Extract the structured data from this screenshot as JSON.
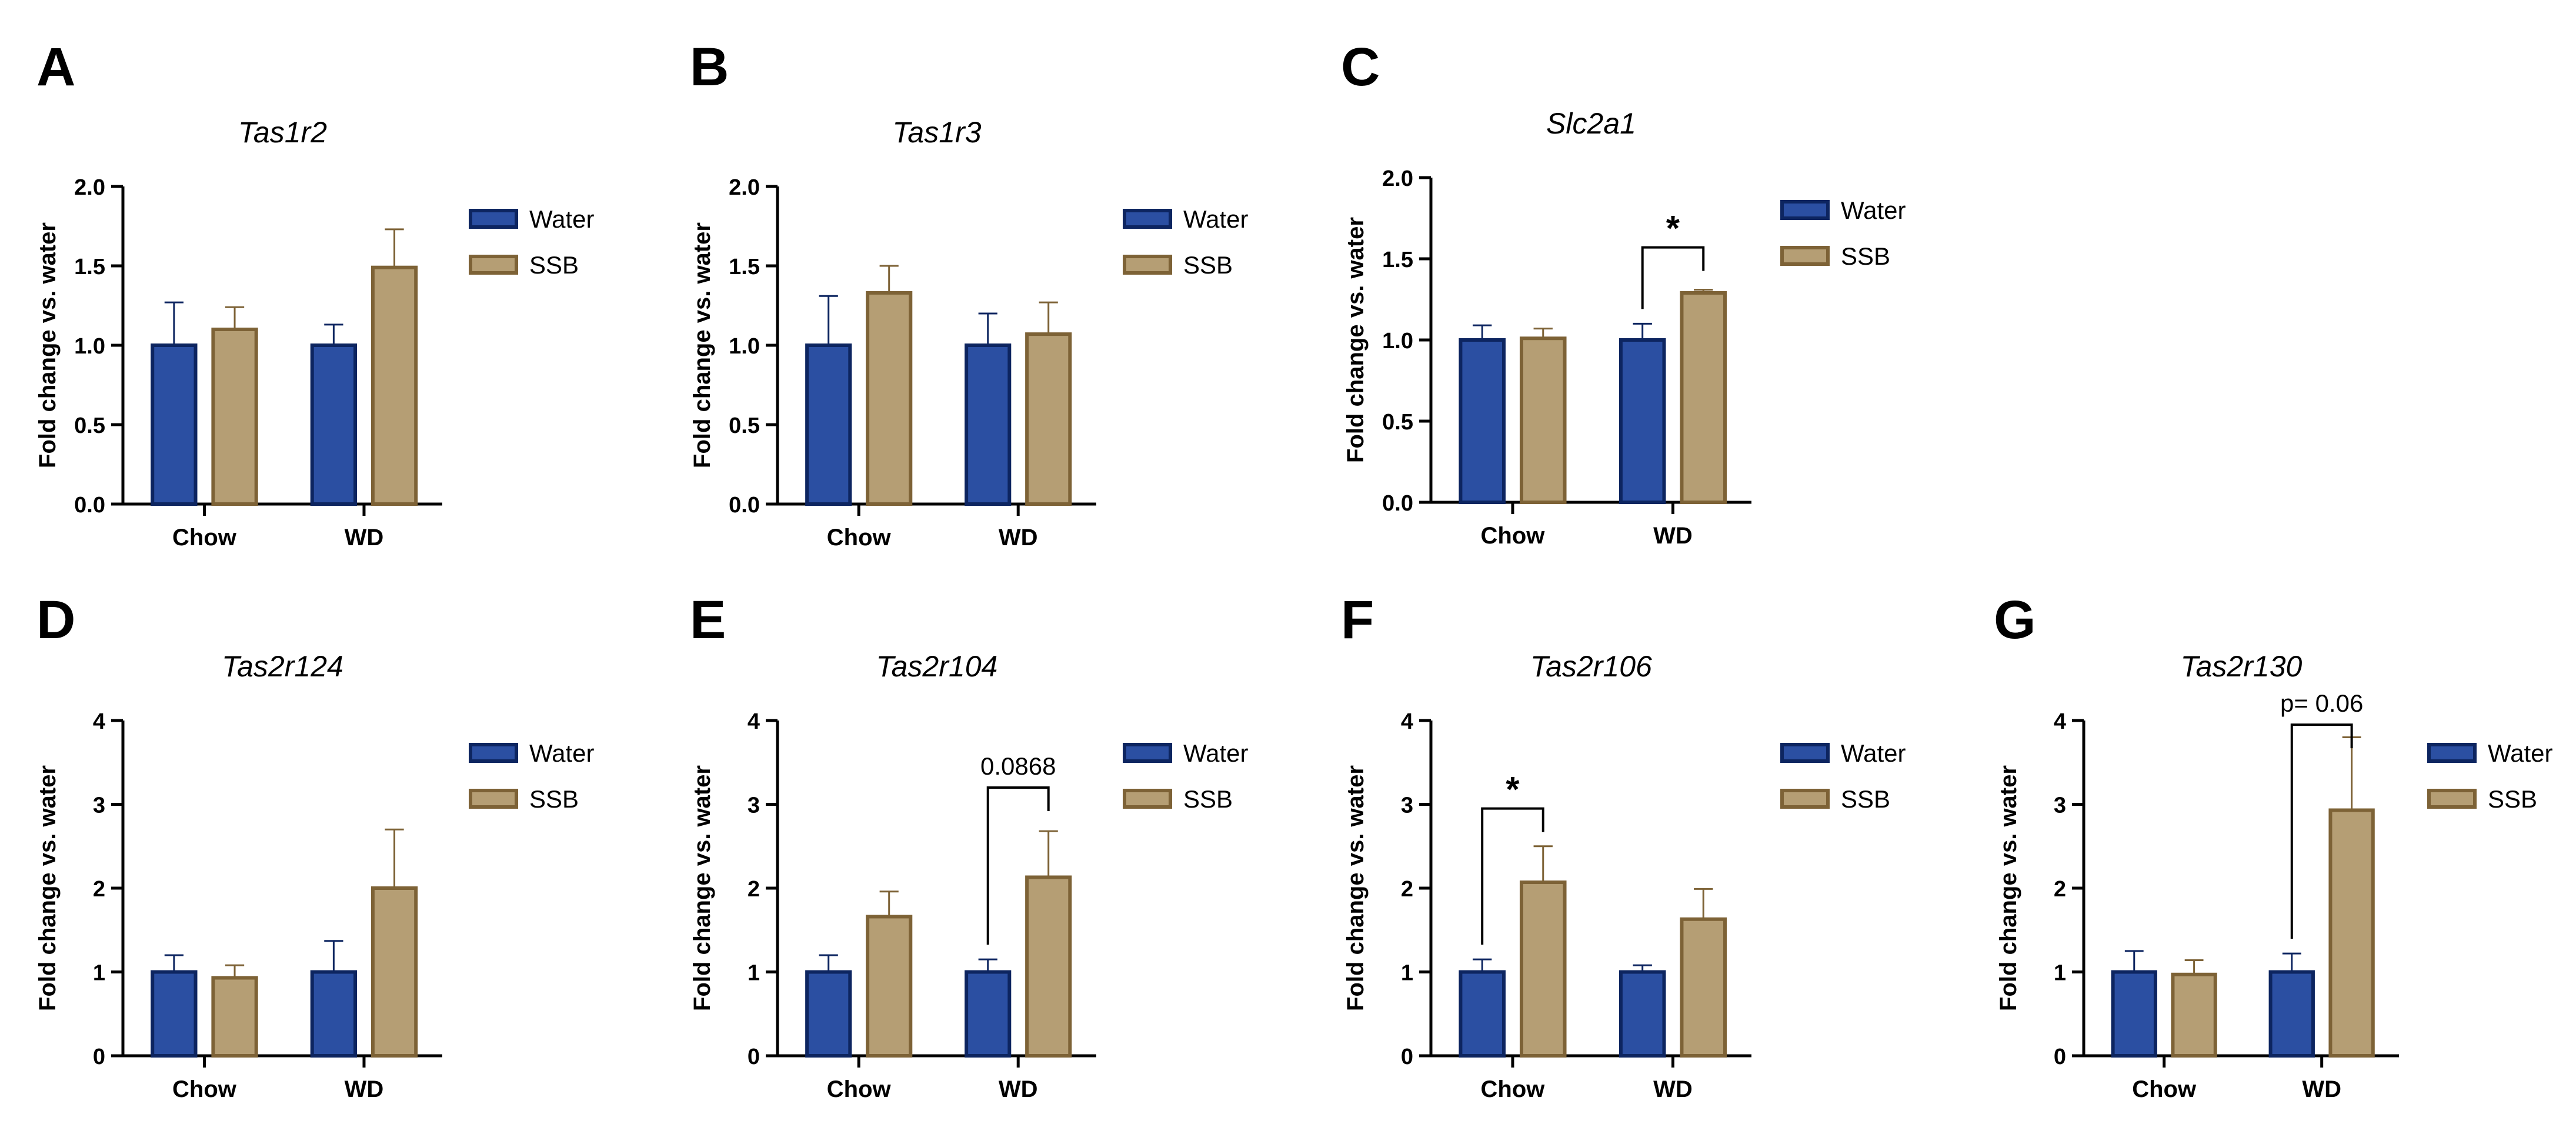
{
  "figure": {
    "background": "#ffffff",
    "text_color": "#000000"
  },
  "colors": {
    "water_fill": "#2b4fa2",
    "water_stroke": "#0d2560",
    "ssb_fill": "#b59e74",
    "ssb_stroke": "#7d6236",
    "axis": "#000000",
    "bracket": "#000000"
  },
  "chart_data": [
    {
      "panel": "A",
      "type": "bar",
      "title": "Tas1r2",
      "categories": [
        "Chow",
        "WD"
      ],
      "ylabel": "Fold change  vs. water",
      "xlabel": "",
      "ylim": [
        0,
        2.0
      ],
      "yticks": [
        "0.0",
        "0.5",
        "1.0",
        "1.5",
        "2.0"
      ],
      "series": [
        {
          "name": "Water",
          "values": [
            1.0,
            1.0
          ],
          "errors": [
            0.27,
            0.13
          ]
        },
        {
          "name": "SSB",
          "values": [
            1.1,
            1.49
          ],
          "errors": [
            0.14,
            0.24
          ]
        }
      ],
      "legend": "top-right",
      "annotations": []
    },
    {
      "panel": "B",
      "type": "bar",
      "title": "Tas1r3",
      "categories": [
        "Chow",
        "WD"
      ],
      "ylabel": "Fold change  vs. water",
      "xlabel": "",
      "ylim": [
        0,
        2.0
      ],
      "yticks": [
        "0.0",
        "0.5",
        "1.0",
        "1.5",
        "2.0"
      ],
      "series": [
        {
          "name": "Water",
          "values": [
            1.0,
            1.0
          ],
          "errors": [
            0.31,
            0.2
          ]
        },
        {
          "name": "SSB",
          "values": [
            1.33,
            1.07
          ],
          "errors": [
            0.17,
            0.2
          ]
        }
      ],
      "legend": "top-right",
      "annotations": []
    },
    {
      "panel": "C",
      "type": "bar",
      "title": "Slc2a1",
      "categories": [
        "Chow",
        "WD"
      ],
      "ylabel": "Fold change  vs. water",
      "xlabel": "",
      "ylim": [
        0,
        2.0
      ],
      "yticks": [
        "0.0",
        "0.5",
        "1.0",
        "1.5",
        "2.0"
      ],
      "series": [
        {
          "name": "Water",
          "values": [
            1.0,
            1.0
          ],
          "errors": [
            0.09,
            0.1
          ]
        },
        {
          "name": "SSB",
          "values": [
            1.01,
            1.29
          ],
          "errors": [
            0.06,
            0.02
          ]
        }
      ],
      "legend": "top-right",
      "annotations": [
        {
          "category": "WD",
          "label": "*",
          "y": 1.57
        }
      ]
    },
    {
      "panel": "D",
      "type": "bar",
      "title": "Tas2r124",
      "categories": [
        "Chow",
        "WD"
      ],
      "ylabel": "Fold change  vs. water",
      "xlabel": "",
      "ylim": [
        0,
        4
      ],
      "yticks": [
        "0",
        "1",
        "2",
        "3",
        "4"
      ],
      "series": [
        {
          "name": "Water",
          "values": [
            1.0,
            1.0
          ],
          "errors": [
            0.2,
            0.37
          ]
        },
        {
          "name": "SSB",
          "values": [
            0.93,
            2.0
          ],
          "errors": [
            0.15,
            0.7
          ]
        }
      ],
      "legend": "top-right",
      "annotations": []
    },
    {
      "panel": "E",
      "type": "bar",
      "title": "Tas2r104",
      "categories": [
        "Chow",
        "WD"
      ],
      "ylabel": "Fold change  vs. water",
      "xlabel": "",
      "ylim": [
        0,
        4
      ],
      "yticks": [
        "0",
        "1",
        "2",
        "3",
        "4"
      ],
      "series": [
        {
          "name": "Water",
          "values": [
            1.0,
            1.0
          ],
          "errors": [
            0.2,
            0.15
          ]
        },
        {
          "name": "SSB",
          "values": [
            1.66,
            2.13
          ],
          "errors": [
            0.3,
            0.55
          ]
        }
      ],
      "legend": "top-right",
      "annotations": [
        {
          "category": "WD",
          "label": "0.0868",
          "y": 3.2
        }
      ]
    },
    {
      "panel": "F",
      "type": "bar",
      "title": "Tas2r106",
      "categories": [
        "Chow",
        "WD"
      ],
      "ylabel": "Fold change  vs. water",
      "xlabel": "",
      "ylim": [
        0,
        4
      ],
      "yticks": [
        "0",
        "1",
        "2",
        "3",
        "4"
      ],
      "series": [
        {
          "name": "Water",
          "values": [
            1.0,
            1.0
          ],
          "errors": [
            0.15,
            0.08
          ]
        },
        {
          "name": "SSB",
          "values": [
            2.07,
            1.63
          ],
          "errors": [
            0.43,
            0.36
          ]
        }
      ],
      "legend": "top-right",
      "annotations": [
        {
          "category": "Chow",
          "label": "*",
          "y": 2.95
        }
      ]
    },
    {
      "panel": "G",
      "type": "bar",
      "title": "Tas2r130",
      "categories": [
        "Chow",
        "WD"
      ],
      "ylabel": "Fold change  vs. water",
      "xlabel": "",
      "ylim": [
        0,
        4
      ],
      "yticks": [
        "0",
        "1",
        "2",
        "3",
        "4"
      ],
      "series": [
        {
          "name": "Water",
          "values": [
            1.0,
            1.0
          ],
          "errors": [
            0.25,
            0.22
          ]
        },
        {
          "name": "SSB",
          "values": [
            0.97,
            2.93
          ],
          "errors": [
            0.17,
            0.87
          ]
        }
      ],
      "legend": "top-right",
      "annotations": [
        {
          "category": "WD",
          "label": "p= 0.06",
          "y": 3.95
        }
      ]
    }
  ]
}
